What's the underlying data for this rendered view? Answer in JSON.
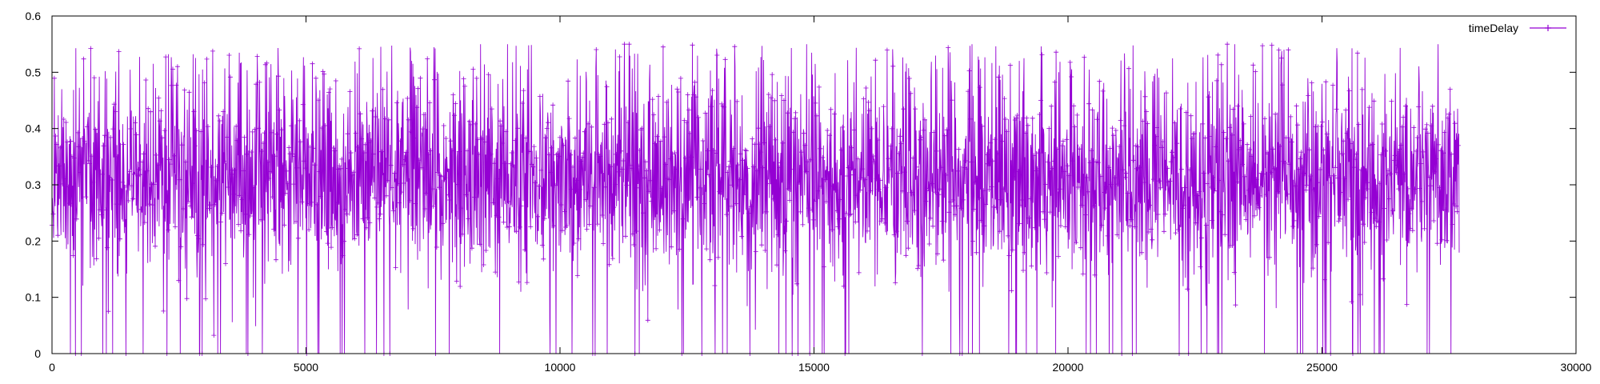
{
  "chart_data": {
    "type": "line",
    "title": "",
    "xlabel": "",
    "ylabel": "",
    "xlim": [
      0,
      30000
    ],
    "ylim": [
      0,
      0.6
    ],
    "x_ticks": [
      0,
      5000,
      10000,
      15000,
      20000,
      25000,
      30000
    ],
    "y_ticks": [
      0,
      0.1,
      0.2,
      0.3,
      0.4,
      0.5,
      0.6
    ],
    "x_tick_labels": [
      "0",
      "5000",
      "10000",
      "15000",
      "20000",
      "25000",
      "30000"
    ],
    "y_tick_labels": [
      "0",
      "0.1",
      "0.2",
      "0.3",
      "0.4",
      "0.5",
      "0.6"
    ],
    "grid": false,
    "legend_position": "top-right",
    "series": [
      {
        "name": "timeDelay",
        "color": "#9400d3",
        "marker": "plus",
        "x_range": [
          0,
          27700
        ],
        "n_points": 27700,
        "approx_mean": 0.3,
        "typical_range": [
          0.12,
          0.48
        ],
        "min": 0,
        "max": 0.55,
        "values_sampled": [
          0.31,
          0.36,
          0.22,
          0.42,
          0.28,
          0.18,
          0.51,
          0.33,
          0.26,
          0.44,
          0.3,
          0.12,
          0.47,
          0.29,
          0.35,
          0.21,
          0.53,
          0.27,
          0.39,
          0.16,
          0.32,
          0.45,
          0.24,
          0.37,
          0.11,
          0.5,
          0.3,
          0.26,
          0.43,
          0.19
        ]
      }
    ]
  }
}
